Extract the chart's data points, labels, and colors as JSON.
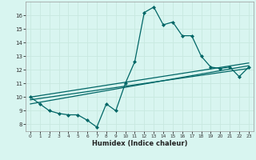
{
  "xlabel": "Humidex (Indice chaleur)",
  "bg_color": "#d8f5f0",
  "grid_color": "#c8e8e0",
  "line_color": "#006666",
  "xlim": [
    -0.5,
    23.5
  ],
  "ylim": [
    7.5,
    17.0
  ],
  "xticks": [
    0,
    1,
    2,
    3,
    4,
    5,
    6,
    7,
    8,
    9,
    10,
    11,
    12,
    13,
    14,
    15,
    16,
    17,
    18,
    19,
    20,
    21,
    22,
    23
  ],
  "yticks": [
    8,
    9,
    10,
    11,
    12,
    13,
    14,
    15,
    16
  ],
  "main_x": [
    0,
    1,
    2,
    3,
    4,
    5,
    6,
    7,
    8,
    9,
    10,
    11,
    12,
    13,
    14,
    15,
    16,
    17,
    18,
    19,
    20,
    21,
    22,
    23
  ],
  "main_y": [
    10.0,
    9.5,
    9.0,
    8.8,
    8.7,
    8.7,
    8.3,
    7.8,
    9.5,
    9.0,
    11.0,
    12.6,
    16.2,
    16.6,
    15.3,
    15.5,
    14.5,
    14.5,
    13.0,
    12.2,
    12.1,
    12.2,
    11.5,
    12.2
  ],
  "line1_x": [
    0,
    23
  ],
  "line1_y": [
    9.5,
    12.3
  ],
  "line2_x": [
    0,
    23
  ],
  "line2_y": [
    9.8,
    12.1
  ],
  "line3_x": [
    0,
    23
  ],
  "line3_y": [
    10.0,
    12.5
  ],
  "marker_size": 2.5,
  "line_width": 0.9
}
